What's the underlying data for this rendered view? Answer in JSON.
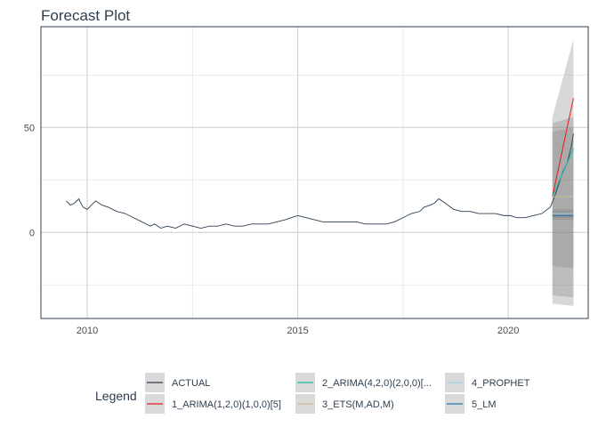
{
  "chart_data": {
    "type": "line",
    "title": "Forecast Plot",
    "xlabel": "",
    "ylabel": "",
    "xlim": [
      2008.9,
      2021.9
    ],
    "ylim": [
      -41,
      98
    ],
    "x_ticks": [
      2010,
      2015,
      2020
    ],
    "x_tick_labels": [
      "2010",
      "2015",
      "2020"
    ],
    "y_ticks": [
      0,
      50
    ],
    "y_tick_labels": [
      "0",
      "50"
    ],
    "grid": true,
    "legend": {
      "title": "Legend",
      "position": "bottom",
      "entries": [
        "ACTUAL",
        "1_ARIMA(1,2,0)(1,0,0)[5]",
        "2_ARIMA(4,2,0)(2,0,0)[...",
        "3_ETS(M,AD,M)",
        "4_PROPHET",
        "5_LM"
      ]
    },
    "series": [
      {
        "name": "ACTUAL",
        "color": "#2c3e50",
        "x": [
          2009.5,
          2009.6,
          2009.7,
          2009.8,
          2009.9,
          2010.0,
          2010.1,
          2010.2,
          2010.35,
          2010.5,
          2010.7,
          2010.9,
          2011.1,
          2011.3,
          2011.5,
          2011.6,
          2011.75,
          2011.9,
          2012.1,
          2012.3,
          2012.5,
          2012.7,
          2012.9,
          2013.1,
          2013.3,
          2013.5,
          2013.7,
          2013.9,
          2014.1,
          2014.3,
          2014.5,
          2014.7,
          2014.85,
          2015.0,
          2015.2,
          2015.4,
          2015.6,
          2015.8,
          2016.0,
          2016.2,
          2016.4,
          2016.6,
          2016.8,
          2016.95,
          2017.1,
          2017.3,
          2017.5,
          2017.7,
          2017.9,
          2018.0,
          2018.15,
          2018.25,
          2018.35,
          2018.5,
          2018.7,
          2018.9,
          2019.1,
          2019.3,
          2019.5,
          2019.7,
          2019.9,
          2020.05,
          2020.2,
          2020.4,
          2020.6,
          2020.8,
          2021.0,
          2021.1,
          2021.2,
          2021.3,
          2021.4,
          2021.5,
          2021.55
        ],
        "values": [
          15,
          13,
          14,
          16,
          12,
          11,
          13,
          15,
          13,
          12,
          10,
          9,
          7,
          5,
          3,
          4,
          2,
          3,
          2,
          4,
          3,
          2,
          3,
          3,
          4,
          3,
          3,
          4,
          4,
          4,
          5,
          6,
          7,
          8,
          7,
          6,
          5,
          5,
          5,
          5,
          5,
          4,
          4,
          4,
          4,
          5,
          7,
          9,
          10,
          12,
          13,
          14,
          16,
          14,
          11,
          10,
          10,
          9,
          9,
          9,
          8,
          8,
          7,
          7,
          8,
          9,
          12,
          17,
          23,
          29,
          33,
          41,
          47
        ]
      },
      {
        "name": "1_ARIMA(1,2,0)(1,0,0)[5]",
        "color": "#e31a1c",
        "x": [
          2021.05,
          2021.55
        ],
        "values": [
          17,
          64
        ],
        "lower": [
          -34,
          -35
        ],
        "upper": [
          55,
          92
        ]
      },
      {
        "name": "2_ARIMA(4,2,0)(2,0,0)[...",
        "color": "#18bc9c",
        "x": [
          2021.05,
          2021.55
        ],
        "values": [
          17,
          40
        ],
        "lower": [
          -30,
          -31
        ],
        "upper": [
          52,
          55
        ]
      },
      {
        "name": "3_ETS(M,AD,M)",
        "color": "#ccbe93",
        "x": [
          2021.05,
          2021.55
        ],
        "values": [
          17,
          17
        ],
        "lower": [
          -16,
          -17
        ],
        "upper": [
          48,
          50
        ]
      },
      {
        "name": "4_PROPHET",
        "color": "#a6cee3",
        "x": [
          2021.05,
          2021.55
        ],
        "values": [
          9,
          9
        ],
        "lower": [
          7,
          7
        ],
        "upper": [
          11,
          11
        ]
      },
      {
        "name": "5_LM",
        "color": "#1f78b4",
        "x": [
          2021.05,
          2021.55
        ],
        "values": [
          8,
          8
        ],
        "lower": [
          6,
          6
        ],
        "upper": [
          10,
          10
        ]
      }
    ]
  }
}
